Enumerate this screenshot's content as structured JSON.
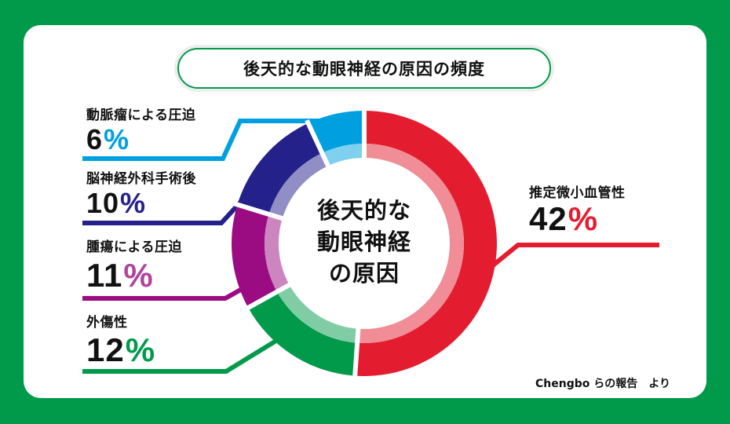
{
  "title": "後天的な動眼神経の原因の頻度",
  "center_label": [
    "後天的な",
    "動眼神経",
    "の原因"
  ],
  "source": "Chengbo らの報告　より",
  "colors": {
    "background": "#009A4A",
    "panel": "#FFFFFF"
  },
  "segments": [
    {
      "label": "推定微小血管性",
      "value": "42",
      "sign": "%",
      "color": "#E31D2F",
      "light": "#F08D96"
    },
    {
      "label": "外傷性",
      "value": "12",
      "sign": "%",
      "color": "#009A4A",
      "light": "#80CCA4"
    },
    {
      "label": "腫瘍による圧迫",
      "value": "11",
      "sign": "%",
      "color": "#9B0C82",
      "light": "#CD85C0"
    },
    {
      "label": "脳神経外科手術後",
      "value": "10",
      "sign": "%",
      "color": "#24218A",
      "light": "#908EC4"
    },
    {
      "label": "動脈瘤による圧迫",
      "value": "6",
      "sign": "%",
      "color": "#00A0E0",
      "light": "#7FCFEF"
    }
  ],
  "chart_data": {
    "type": "pie",
    "title": "後天的な動眼神経の原因の頻度",
    "center_text": "後天的な動眼神経の原因",
    "categories": [
      "推定微小血管性",
      "外傷性",
      "腫瘍による圧迫",
      "脳神経外科手術後",
      "動脈瘤による圧迫"
    ],
    "values": [
      42,
      12,
      11,
      10,
      6
    ],
    "unit": "%",
    "colors": [
      "#E31D2F",
      "#009A4A",
      "#9B0C82",
      "#24218A",
      "#00A0E0"
    ],
    "donut": true,
    "source_note": "Chengbo らの報告　より"
  }
}
